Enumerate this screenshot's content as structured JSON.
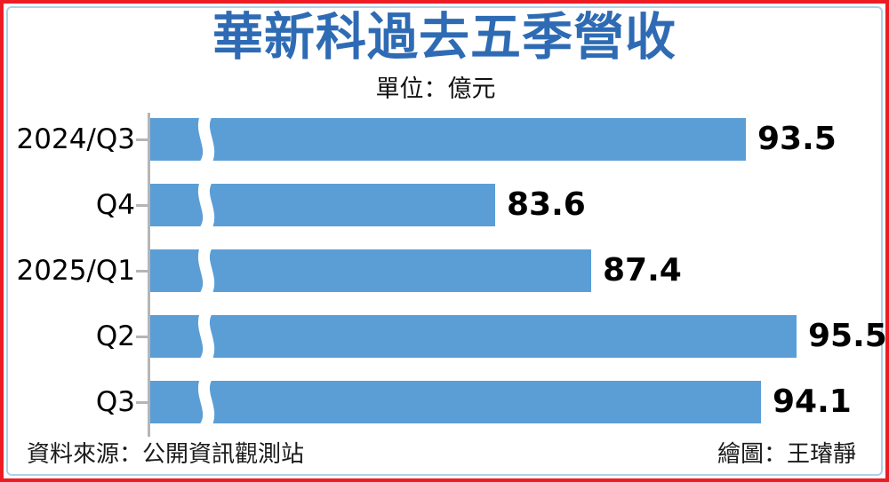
{
  "title": {
    "text": "華新科過去五季營收",
    "color": "#2e6bb4"
  },
  "subtitle": "單位：億元",
  "footer": {
    "source": "資料來源：公開資訊觀測站",
    "credit": "繪圖：王璿靜"
  },
  "frame": {
    "outer_border_color": "#ed1c24",
    "inner_border_color": "#afd0e9"
  },
  "chart_data": {
    "type": "bar",
    "orientation": "horizontal",
    "title": "華新科過去五季營收",
    "unit_label": "單位：億元",
    "categories": [
      "2024/Q3",
      "Q4",
      "2025/Q1",
      "Q2",
      "Q3"
    ],
    "values": [
      93.5,
      83.6,
      87.4,
      95.5,
      94.1
    ],
    "value_labels": [
      "93.5",
      "83.6",
      "87.4",
      "95.5",
      "94.1"
    ],
    "xlim": [
      70,
      97
    ],
    "axis_break": true,
    "bar_color": "#5b9ed6",
    "axis_color": "#b5b5b5",
    "grid": false,
    "legend": false
  }
}
